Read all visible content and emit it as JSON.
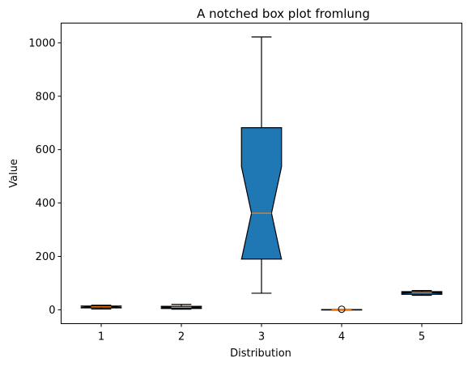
{
  "chart_data": {
    "type": "box",
    "title": "A notched box plot fromlung",
    "xlabel": "Distribution",
    "ylabel": "Value",
    "ylim": [
      -52,
      1074
    ],
    "yticks": [
      0,
      200,
      400,
      600,
      800,
      1000
    ],
    "categories": [
      "1",
      "2",
      "3",
      "4",
      "5"
    ],
    "notched": true,
    "patch_artist": true,
    "box_fill_color": "#1f77b4",
    "median_color": "#ff7f0e",
    "grid": false,
    "boxes": [
      {
        "label": "1",
        "whisker_low": 3,
        "q1": 7,
        "median": 11,
        "q3": 14,
        "whisker_high": 17,
        "notch_low": 8,
        "notch_high": 13,
        "outliers": []
      },
      {
        "label": "2",
        "whisker_low": 2,
        "q1": 5,
        "median": 9,
        "q3": 13,
        "whisker_high": 20,
        "notch_low": 7,
        "notch_high": 11,
        "outliers": []
      },
      {
        "label": "3",
        "whisker_low": 62,
        "q1": 190,
        "median": 362,
        "q3": 682,
        "whisker_high": 1022,
        "notch_low": 188,
        "notch_high": 536,
        "outliers": []
      },
      {
        "label": "4",
        "whisker_low": -1,
        "q1": -1,
        "median": 0,
        "q3": 1,
        "whisker_high": 1,
        "notch_low": -0.5,
        "notch_high": 0.5,
        "outliers": [
          2
        ]
      },
      {
        "label": "5",
        "whisker_low": 54,
        "q1": 58,
        "median": 64,
        "q3": 68,
        "whisker_high": 72,
        "notch_low": 62,
        "notch_high": 66,
        "outliers": []
      }
    ]
  }
}
